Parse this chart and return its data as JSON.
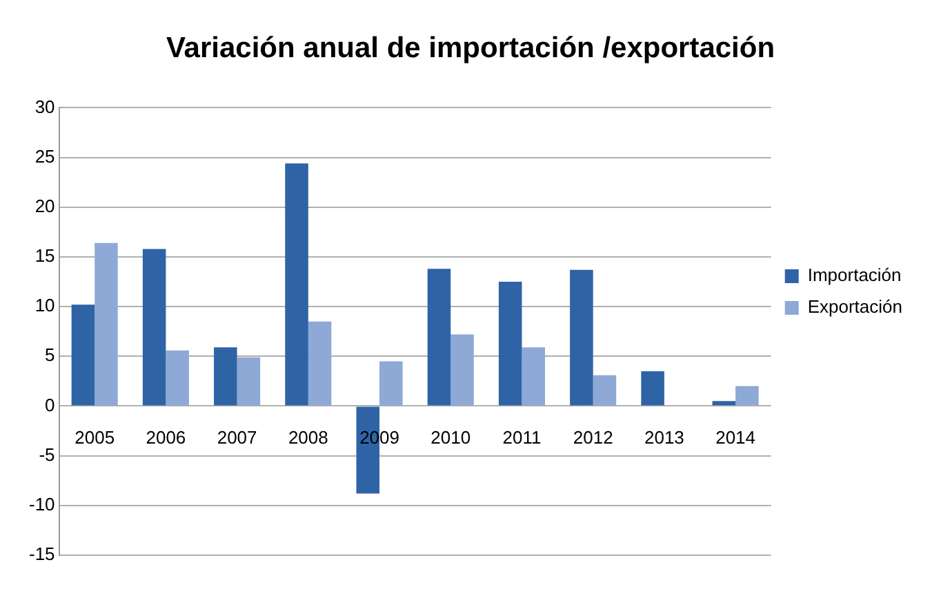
{
  "chart_data": {
    "type": "bar",
    "title": "Variación anual de importación /exportación",
    "categories": [
      "2005",
      "2006",
      "2007",
      "2008",
      "2009",
      "2010",
      "2011",
      "2012",
      "2013",
      "2014"
    ],
    "series": [
      {
        "name": "Importación",
        "color": "#2e63a6",
        "values": [
          10.2,
          15.8,
          5.9,
          24.4,
          -8.8,
          13.8,
          12.5,
          13.7,
          3.5,
          0.5
        ]
      },
      {
        "name": "Exportación",
        "color": "#8ea9d6",
        "values": [
          16.4,
          5.6,
          4.9,
          8.5,
          4.5,
          7.2,
          5.9,
          3.1,
          null,
          2.0
        ]
      }
    ],
    "ylim": [
      -15,
      30
    ],
    "yticks": [
      -15,
      -10,
      -5,
      0,
      5,
      10,
      15,
      20,
      25,
      30
    ],
    "grid": "y",
    "legend": "right"
  }
}
